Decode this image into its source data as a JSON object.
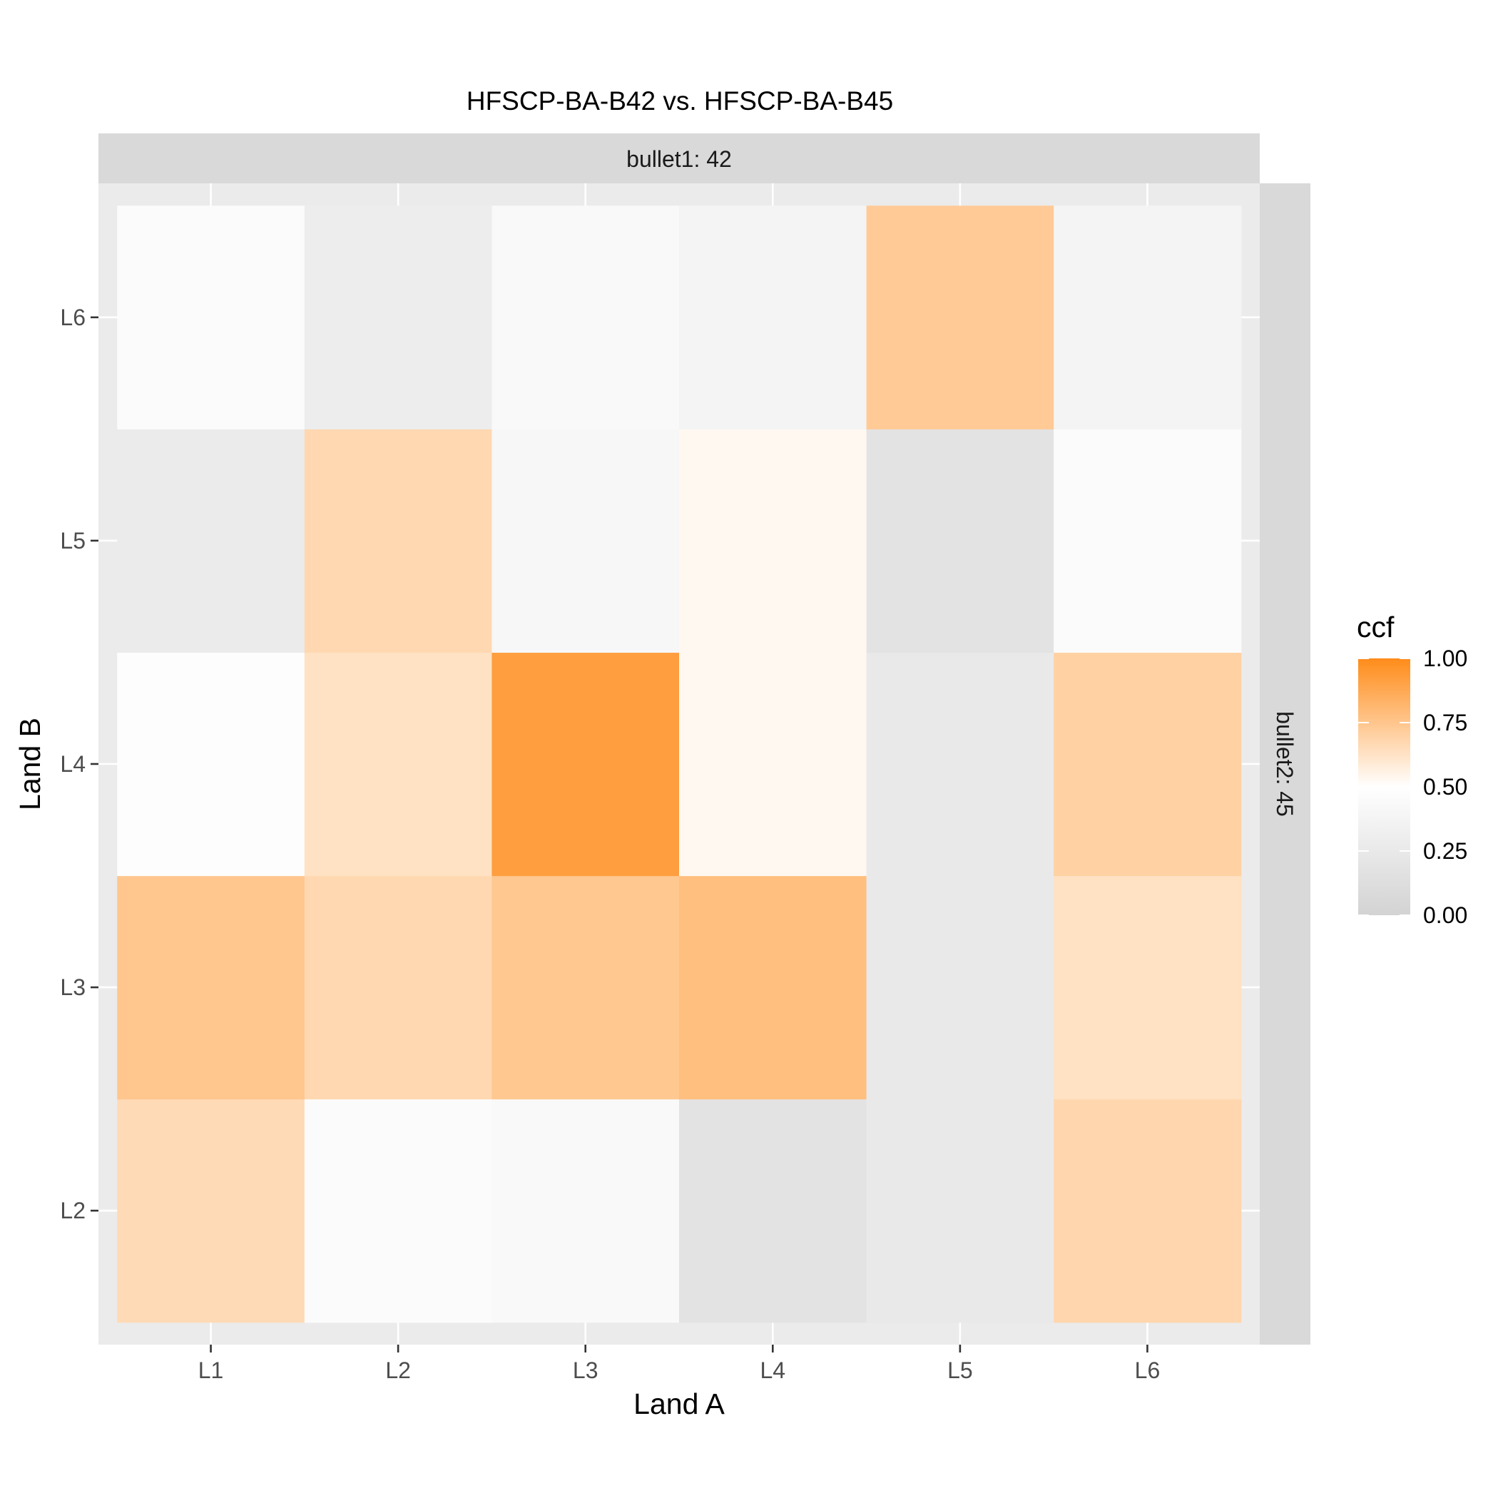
{
  "chart_data": {
    "type": "heatmap",
    "title": "HFSCP-BA-B42 vs. HFSCP-BA-B45",
    "xlabel": "Land A",
    "ylabel": "Land B",
    "facet_top": "bullet1: 42",
    "facet_right": "bullet2: 45",
    "x_categories": [
      "L1",
      "L2",
      "L3",
      "L4",
      "L5",
      "L6"
    ],
    "y_categories": [
      "L2",
      "L3",
      "L4",
      "L5",
      "L6"
    ],
    "values": [
      [
        0.66,
        0.45,
        0.43,
        0.18,
        0.25,
        0.68
      ],
      [
        0.75,
        0.67,
        0.74,
        0.78,
        0.25,
        0.63
      ],
      [
        0.48,
        0.63,
        0.92,
        0.53,
        0.25,
        0.7
      ],
      [
        0.27,
        0.67,
        0.41,
        0.53,
        0.18,
        0.45
      ],
      [
        0.46,
        0.3,
        0.43,
        0.38,
        0.73,
        0.38
      ]
    ],
    "legend": {
      "title": "ccf",
      "ticks": [
        "1.00",
        "0.75",
        "0.50",
        "0.25",
        "0.00"
      ],
      "position": "right"
    },
    "colors": {
      "low": "#d3d3d3",
      "mid": "#ffffff",
      "high": "#ff8c1a",
      "panel_bg": "#ebebeb",
      "strip_bg": "#d9d9d9",
      "grid": "#ffffff"
    }
  }
}
